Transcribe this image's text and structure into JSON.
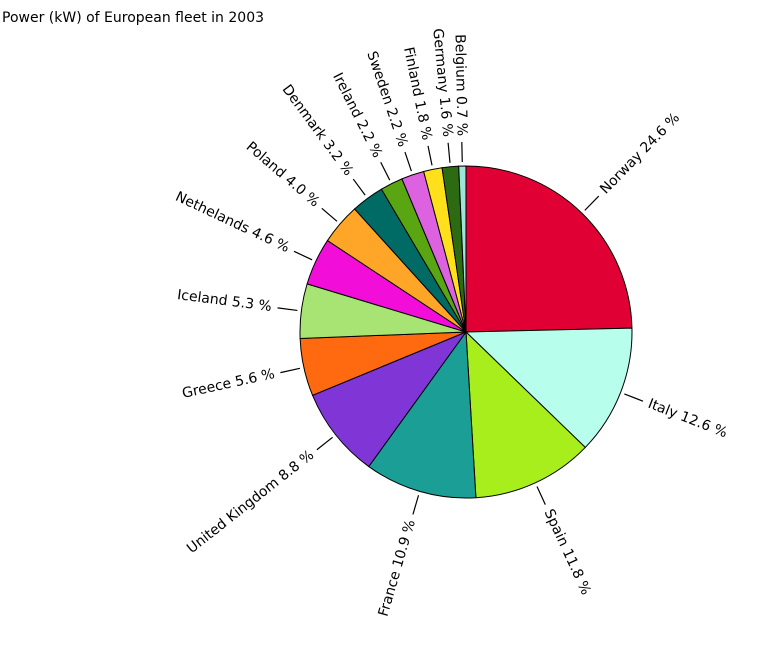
{
  "chart_data": {
    "type": "pie",
    "title": "Power (kW) of European fleet in 2003",
    "unit": "%",
    "slices": [
      {
        "label": "Norway",
        "value": 24.6,
        "color": "#e00034"
      },
      {
        "label": "Italy",
        "value": 12.6,
        "color": "#b7ffec"
      },
      {
        "label": "Spain",
        "value": 11.8,
        "color": "#a8ee1c"
      },
      {
        "label": "France",
        "value": 10.9,
        "color": "#1b9e95"
      },
      {
        "label": "United Kingdom",
        "value": 8.8,
        "color": "#8036d6"
      },
      {
        "label": "Greece",
        "value": 5.6,
        "color": "#ff6a10"
      },
      {
        "label": "Iceland",
        "value": 5.3,
        "color": "#a8e473"
      },
      {
        "label": "Nethelands",
        "value": 4.6,
        "color": "#f20ed8"
      },
      {
        "label": "Poland",
        "value": 4.0,
        "color": "#ffa629"
      },
      {
        "label": "Denmark",
        "value": 3.2,
        "color": "#006b64"
      },
      {
        "label": "Ireland",
        "value": 2.2,
        "color": "#5aa512"
      },
      {
        "label": "Sweden",
        "value": 2.2,
        "color": "#dd62e0"
      },
      {
        "label": "Finland",
        "value": 1.8,
        "color": "#ffe01a"
      },
      {
        "label": "Germany",
        "value": 1.6,
        "color": "#2d6b12"
      },
      {
        "label": "Belgium",
        "value": 0.7,
        "color": "#9ce6d9"
      }
    ]
  }
}
